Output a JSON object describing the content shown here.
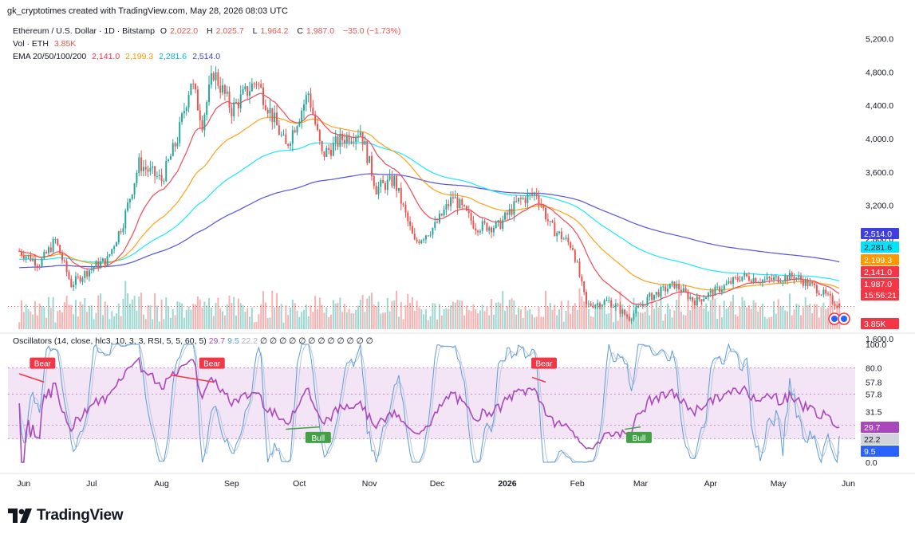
{
  "credit": "gk_cryptotimes created with TradingView.com, May 28, 2026 08:03 UTC",
  "brand": {
    "name": "TradingView"
  },
  "legend": {
    "symbol": "Ethereum / U.S. Dollar · 1D · Bitstamp",
    "open_label": "O",
    "open": "2,022.0",
    "high_label": "H",
    "high": "2,025.7",
    "low_label": "L",
    "low": "1,964.2",
    "close_label": "C",
    "close": "1,987.0",
    "change": "−35.0 (−1.73%)",
    "vol_label": "Vol · ETH",
    "vol": "3.85K",
    "ema_label": "EMA 20/50/100/200",
    "ema20": "2,141.0",
    "ema50": "2,199.3",
    "ema100": "2,281.6",
    "ema200": "2,514.0"
  },
  "oscillator_legend": {
    "label": "Oscillators (14, close, hlc3, 10, 3, 3, RSI, 5, 5, 60, 5)",
    "v1": "29.7",
    "v2": "9.5",
    "v3": "22.2",
    "zeros": "∅ ∅ ∅ ∅ ∅ ∅ ∅ ∅ ∅ ∅ ∅ ∅"
  },
  "colors": {
    "up": "#26a69a",
    "down": "#ef5350",
    "ema20": "#f23645",
    "ema50": "#ff9800",
    "ema100": "#00e5ff",
    "ema200": "#3f3fe0",
    "rsi": "#ab47bc",
    "stoch": "#5b9bd5",
    "bear": "#f23645",
    "bull": "#43a047",
    "band_fill": "#f3e5f5"
  },
  "chart_data": [
    {
      "type": "candlestick",
      "timeframe": "1D",
      "x_ticks": [
        "Jun",
        "Jul",
        "Aug",
        "Sep",
        "Oct",
        "Nov",
        "Dec",
        "2026",
        "Feb",
        "Mar",
        "Apr",
        "May",
        "Jun"
      ],
      "y_ticks": [
        "5,200.0",
        "4,800.0",
        "4,400.0",
        "4,000.0",
        "3,600.0",
        "3,200.0",
        "2,800.0",
        "1,600.0"
      ],
      "ylim": [
        1600,
        5300
      ],
      "price_path": [
        {
          "x": "2025-05-30",
          "y": 2650
        },
        {
          "x": "2025-06-08",
          "y": 2500
        },
        {
          "x": "2025-06-15",
          "y": 2780
        },
        {
          "x": "2025-06-22",
          "y": 2250
        },
        {
          "x": "2025-07-01",
          "y": 2450
        },
        {
          "x": "2025-07-08",
          "y": 2550
        },
        {
          "x": "2025-07-15",
          "y": 3000
        },
        {
          "x": "2025-07-22",
          "y": 3700
        },
        {
          "x": "2025-08-01",
          "y": 3500
        },
        {
          "x": "2025-08-08",
          "y": 4000
        },
        {
          "x": "2025-08-14",
          "y": 4700
        },
        {
          "x": "2025-08-19",
          "y": 4200
        },
        {
          "x": "2025-08-24",
          "y": 4800
        },
        {
          "x": "2025-09-01",
          "y": 4350
        },
        {
          "x": "2025-09-12",
          "y": 4700
        },
        {
          "x": "2025-09-25",
          "y": 3900
        },
        {
          "x": "2025-10-05",
          "y": 4550
        },
        {
          "x": "2025-10-11",
          "y": 3800
        },
        {
          "x": "2025-10-20",
          "y": 4000
        },
        {
          "x": "2025-10-28",
          "y": 4100
        },
        {
          "x": "2025-11-04",
          "y": 3400
        },
        {
          "x": "2025-11-12",
          "y": 3500
        },
        {
          "x": "2025-11-21",
          "y": 2750
        },
        {
          "x": "2025-11-30",
          "y": 2950
        },
        {
          "x": "2025-12-08",
          "y": 3300
        },
        {
          "x": "2025-12-18",
          "y": 2950
        },
        {
          "x": "2025-12-28",
          "y": 2950
        },
        {
          "x": "2026-01-06",
          "y": 3250
        },
        {
          "x": "2026-01-14",
          "y": 3350
        },
        {
          "x": "2026-01-20",
          "y": 2950
        },
        {
          "x": "2026-01-30",
          "y": 2700
        },
        {
          "x": "2026-02-05",
          "y": 2000
        },
        {
          "x": "2026-02-15",
          "y": 2050
        },
        {
          "x": "2026-02-24",
          "y": 1850
        },
        {
          "x": "2026-03-05",
          "y": 2100
        },
        {
          "x": "2026-03-16",
          "y": 2250
        },
        {
          "x": "2026-03-25",
          "y": 2050
        },
        {
          "x": "2026-04-05",
          "y": 2200
        },
        {
          "x": "2026-04-15",
          "y": 2350
        },
        {
          "x": "2026-04-25",
          "y": 2300
        },
        {
          "x": "2026-05-08",
          "y": 2350
        },
        {
          "x": "2026-05-18",
          "y": 2200
        },
        {
          "x": "2026-05-28",
          "y": 1987
        }
      ],
      "ema_endpoints": {
        "EMA20": 2141.0,
        "EMA50": 2199.3,
        "EMA100": 2281.6,
        "EMA200": 2514.0
      },
      "last_close": "1,987.0",
      "countdown": "15:56:21",
      "volume_last": "3.85K",
      "ema_labels": [
        "2,514.0",
        "2,281.6",
        "2,199.3",
        "2,141.0"
      ]
    },
    {
      "type": "line",
      "name": "Oscillators (14, close, hlc3, 10, 3, 3, RSI, 5, 5, 60, 5)",
      "y_ticks": [
        "100.0",
        "80.0",
        "57.8",
        "57.8",
        "31.5",
        "31.5",
        "0.0"
      ],
      "ylim": [
        0,
        100
      ],
      "bands": [
        80,
        57.8,
        31.5,
        20
      ],
      "last_values": {
        "rsi": 29.7,
        "k": 22.2,
        "d": 9.5
      },
      "value_labels": [
        "29.7",
        "22.2",
        "9.5"
      ],
      "divergences": [
        {
          "type": "Bear",
          "from": "2025-05-30",
          "to": "2025-06-10"
        },
        {
          "type": "Bear",
          "from": "2025-08-05",
          "to": "2025-08-24"
        },
        {
          "type": "Bull",
          "from": "2025-09-25",
          "to": "2025-10-10"
        },
        {
          "type": "Bear",
          "from": "2026-01-12",
          "to": "2026-01-18"
        },
        {
          "type": "Bull",
          "from": "2026-02-22",
          "to": "2026-03-01"
        }
      ]
    }
  ]
}
